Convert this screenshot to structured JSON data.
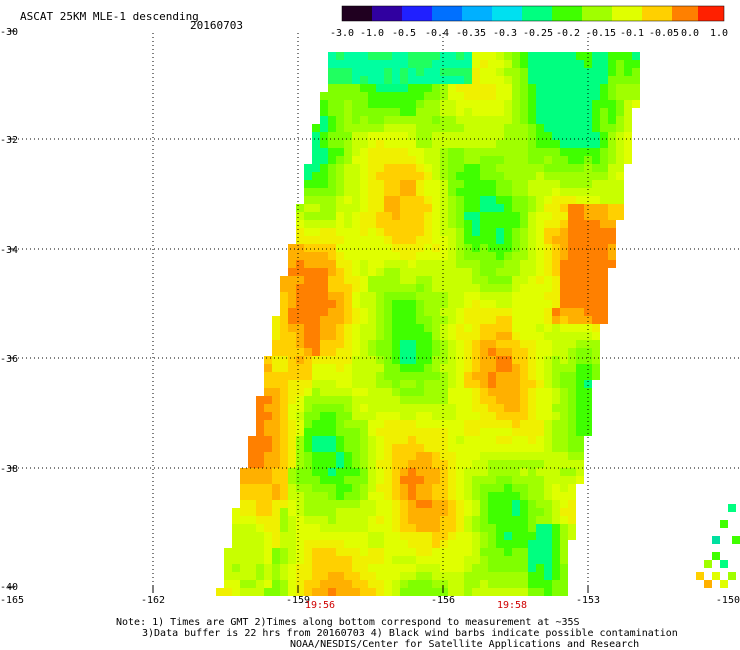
{
  "title": "ASCAT 25KM MLE-1 descending",
  "date": "20160703",
  "colorbar": {
    "labels": [
      "-3.0",
      "-1.0",
      "-0.5",
      "-0.4",
      "-0.35",
      "-0.3",
      "-0.25",
      "-0.2",
      "-0.15",
      "-0.1",
      "-0.05",
      "0.0",
      "1.0"
    ],
    "colors": [
      "#200020",
      "#3000a0",
      "#2020ff",
      "#0070ff",
      "#00b0ff",
      "#00e0f0",
      "#00ff80",
      "#40ff00",
      "#a0ff00",
      "#e0ff00",
      "#ffd000",
      "#ff8000",
      "#ff2000"
    ]
  },
  "axes": {
    "lat_labels": [
      "-30",
      "-32",
      "-34",
      "-36",
      "-38",
      "-40"
    ],
    "lon_labels": [
      "-165",
      "-162",
      "-159",
      "-156",
      "-153",
      "-150"
    ],
    "time_labels": [
      "19:56",
      "19:58"
    ]
  },
  "footer": {
    "line1": "Note: 1) Times are GMT 2)Times along bottom correspond to measurement at ~35S",
    "line2": "3)Data buffer is 22 hrs from 20160703 4) Black wind barbs indicate possible contamination",
    "line3": "NOAA/NESDIS/Center for Satellite Applications and Research"
  }
}
